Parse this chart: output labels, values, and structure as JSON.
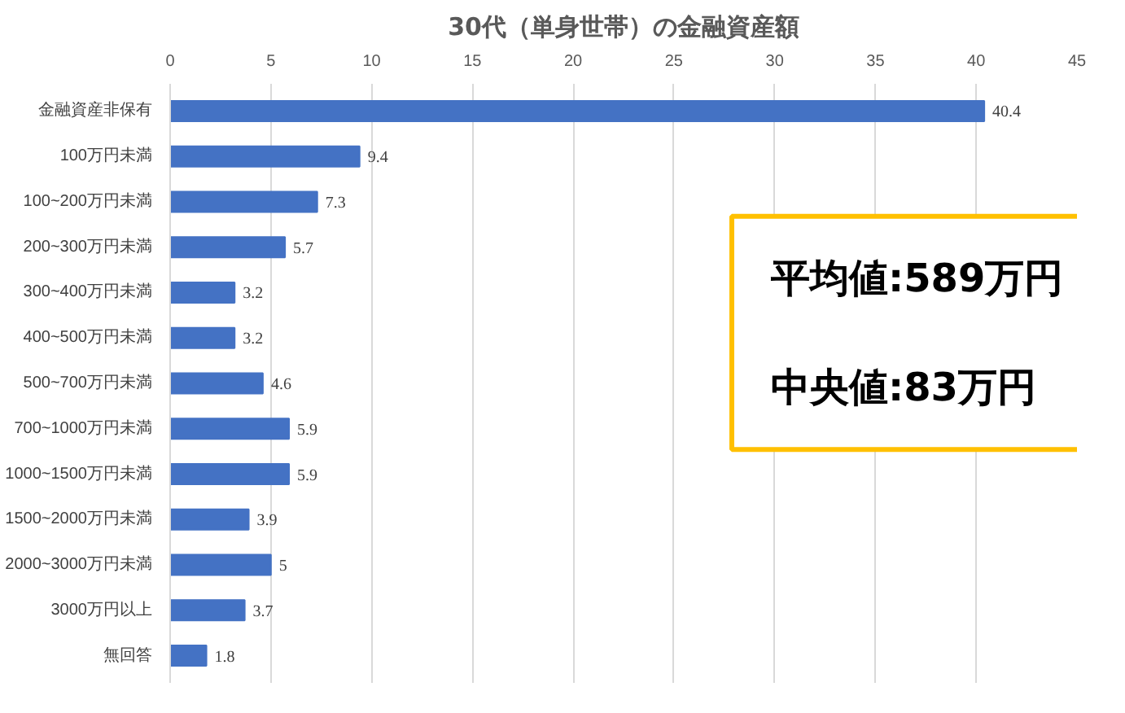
{
  "chart_data": {
    "type": "bar",
    "orientation": "horizontal",
    "title": "30代（単身世帯）の金融資産額",
    "categories": [
      "金融資産非保有",
      "100万円未満",
      "100~200万円未満",
      "200~300万円未満",
      "300~400万円未満",
      "400~500万円未満",
      "500~700万円未満",
      "700~1000万円未満",
      "1000~1500万円未満",
      "1500~2000万円未満",
      "2000~3000万円未満",
      "3000万円以上",
      "無回答"
    ],
    "values": [
      40.4,
      9.4,
      7.3,
      5.7,
      3.2,
      3.2,
      4.6,
      5.9,
      5.9,
      3.9,
      5,
      3.7,
      1.8
    ],
    "color": "#4472c4",
    "data_labels": true,
    "xlim": [
      0,
      45
    ],
    "xticks": [
      0,
      5,
      10,
      15,
      20,
      25,
      30,
      35,
      40,
      45
    ],
    "grid": "x",
    "annotations": [
      "平均値:589万円",
      "中央値:83万円"
    ]
  }
}
